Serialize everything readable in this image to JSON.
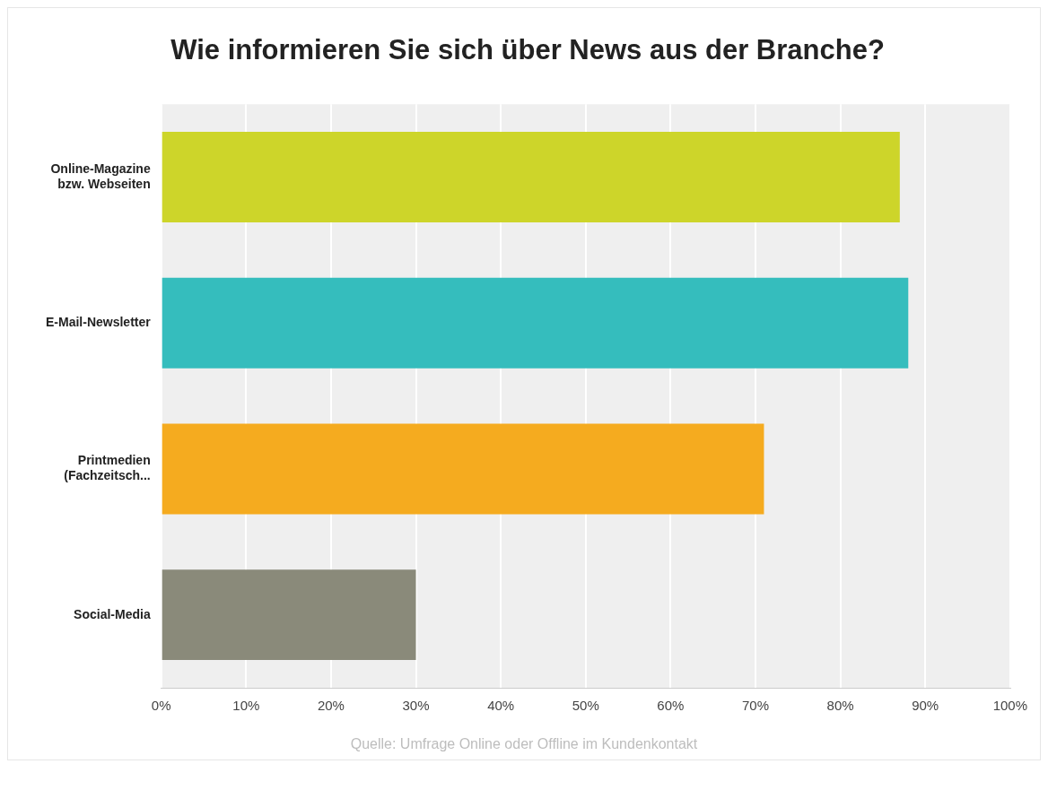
{
  "chart_data": {
    "type": "bar",
    "orientation": "horizontal",
    "title": "Wie informieren Sie sich über News aus der Branche?",
    "categories": [
      "Online-Magazine bzw. Webseiten",
      "E-Mail-Newsletter",
      "Printmedien (Fachzeitsch...",
      "Social-Media"
    ],
    "values": [
      87,
      88,
      71,
      30
    ],
    "colors": [
      "#cdd52a",
      "#35bdbd",
      "#f5ab1f",
      "#8a8a7a"
    ],
    "xlim": [
      0,
      100
    ],
    "xticks": [
      {
        "value": 0,
        "label": "0%"
      },
      {
        "value": 10,
        "label": "10%"
      },
      {
        "value": 20,
        "label": "20%"
      },
      {
        "value": 30,
        "label": "30%"
      },
      {
        "value": 40,
        "label": "40%"
      },
      {
        "value": 50,
        "label": "50%"
      },
      {
        "value": 60,
        "label": "60%"
      },
      {
        "value": 70,
        "label": "70%"
      },
      {
        "value": 80,
        "label": "80%"
      },
      {
        "value": 90,
        "label": "90%"
      },
      {
        "value": 100,
        "label": "100%"
      }
    ],
    "grid": "x",
    "annotations": [
      "Quelle: Umfrage Online oder Offline im Kundenkontakt"
    ]
  }
}
